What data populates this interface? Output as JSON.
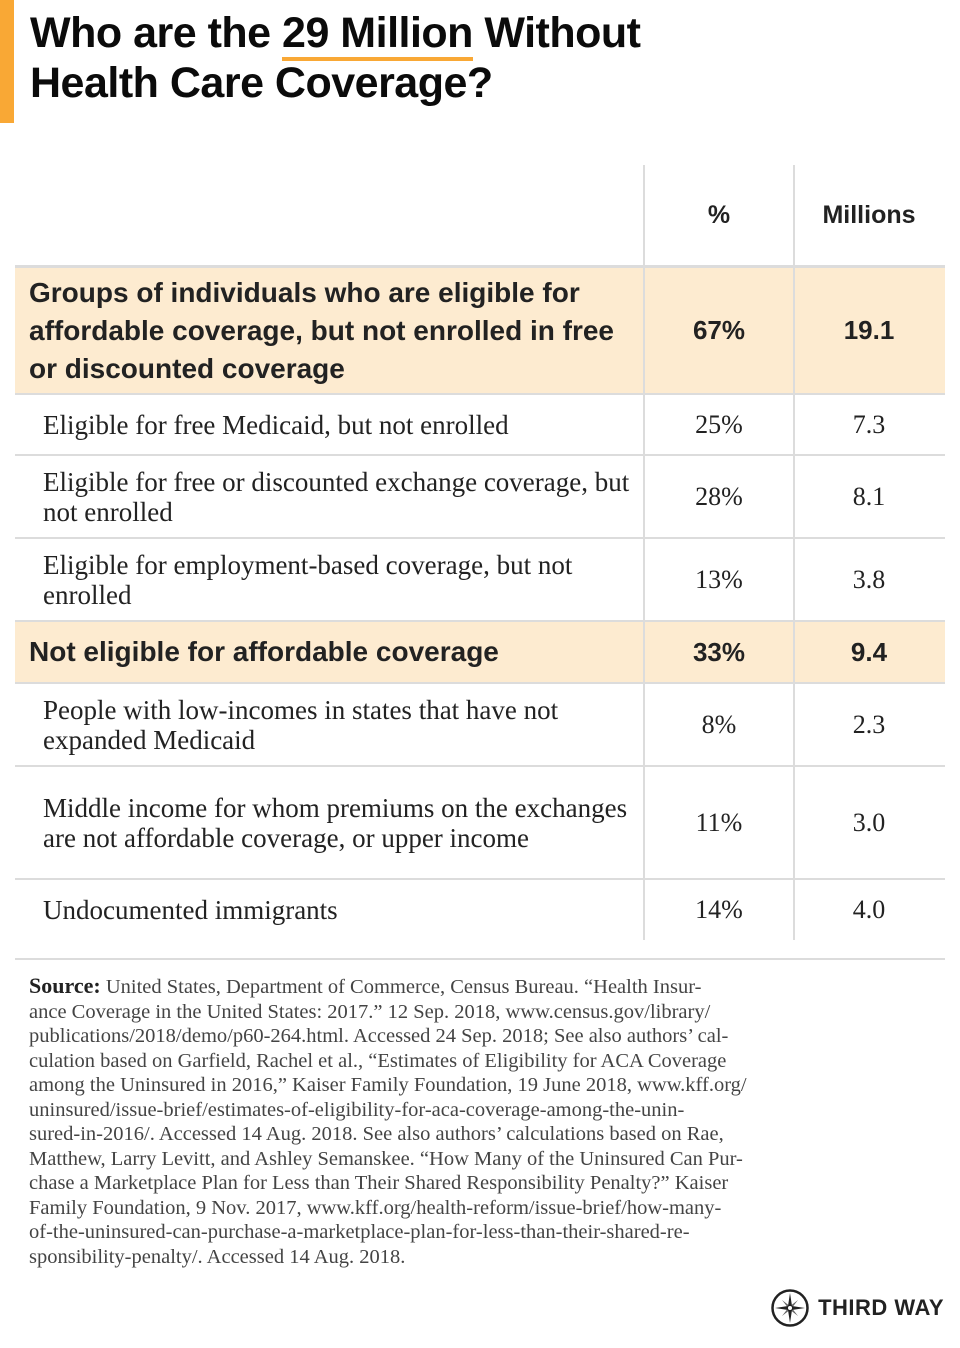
{
  "title": {
    "before": "Who are the ",
    "highlight": "29 Million",
    "after": " Without",
    "line2": "Health Care Coverage?"
  },
  "colors": {
    "accent": "#f9a835",
    "highlight_row": "#fdebd0"
  },
  "table": {
    "headers": {
      "label": "",
      "percent": "%",
      "millions": "Millions"
    },
    "rows": [
      {
        "type": "group",
        "label": "Groups of individuals who are eligible for affordable coverage, but not enrolled in free or discounted coverage",
        "percent": "67%",
        "millions": "19.1"
      },
      {
        "type": "item",
        "label": "Eligible for free Medicaid, but not enrolled",
        "percent": "25%",
        "millions": "7.3"
      },
      {
        "type": "item",
        "label": "Eligible for free or discounted exchange coverage, but not enrolled",
        "percent": "28%",
        "millions": "8.1"
      },
      {
        "type": "item",
        "label": "Eligible for employment-based coverage, but not enrolled",
        "percent": "13%",
        "millions": "3.8"
      },
      {
        "type": "group",
        "label": "Not eligible for affordable coverage",
        "percent": "33%",
        "millions": "9.4"
      },
      {
        "type": "item",
        "label": "People with low-incomes in states that have not expanded Medicaid",
        "percent": "8%",
        "millions": "2.3"
      },
      {
        "type": "item",
        "label": "Middle income for whom premiums on the exchanges are not affordable coverage, or upper income",
        "percent": "11%",
        "millions": "3.0"
      },
      {
        "type": "item",
        "label": "Undocumented immigrants",
        "percent": "14%",
        "millions": "4.0"
      }
    ]
  },
  "source": {
    "label": "Source:",
    "lines": [
      " United States, Department of Commerce, Census Bureau. “Health Insur-",
      "ance Coverage in the United States: 2017.” 12 Sep. 2018, www.census.gov/library/",
      "publications/2018/demo/p60-264.html. Accessed 24 Sep. 2018; See also authors’ cal-",
      "culation based on Garfield, Rachel et al., “Estimates of Eligibility for ACA Coverage",
      "among the Uninsured in 2016,” Kaiser Family Foundation, 19 June 2018, www.kff.org/",
      "uninsured/issue-brief/estimates-of-eligibility-for-aca-coverage-among-the-unin-",
      "sured-in-2016/. Accessed 14 Aug. 2018. See also authors’ calculations based on Rae,",
      "Matthew, Larry Levitt, and Ashley Semanskee. “How Many of the Uninsured Can Pur-",
      "chase a Marketplace Plan for Less than Their Shared Responsibility Penalty?” Kaiser",
      "Family Foundation, 9 Nov. 2017, www.kff.org/health-reform/issue-brief/how-many-",
      "of-the-uninsured-can-purchase-a-marketplace-plan-for-less-than-their-shared-re-",
      "sponsibility-penalty/. Accessed 14 Aug. 2018."
    ]
  },
  "logo": {
    "text": "THIRD WAY",
    "icon": "compass-star-icon"
  }
}
